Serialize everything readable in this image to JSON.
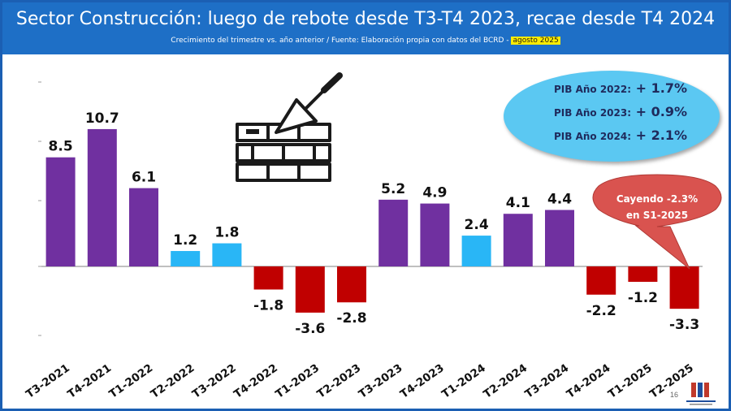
{
  "header": {
    "title": "Sector Construcción: luego de rebote desde T3-T4 2023, recae desde T4 2024",
    "subtitle": "Crecimiento del trimestre vs. año anterior / Fuente: Elaboración propia con datos del BCRD - ",
    "subtitle_highlight": "agosto 2025"
  },
  "pib_box": {
    "items": [
      {
        "label": "PIB Año 2022:",
        "value": "+ 1.7%"
      },
      {
        "label": "PIB Año 2023:",
        "value": "+ 0.9%"
      },
      {
        "label": "PIB Año 2024:",
        "value": "+ 2.1%"
      }
    ]
  },
  "callout": {
    "line1": "Cayendo -2.3%",
    "line2": "en S1-2025"
  },
  "page_number": "16",
  "colors": {
    "header": "#1e6fc6",
    "purple": "#7030a0",
    "light_blue": "#29b6f6",
    "red": "#c00000",
    "ellipse": "#5bc8f2",
    "callout": "#d9534f"
  },
  "chart_data": {
    "type": "bar",
    "title": "Sector Construcción: luego de rebote desde T3-T4 2023, recae desde T4 2024",
    "xlabel": "",
    "ylabel": "",
    "categories": [
      "T3-2021",
      "T4-2021",
      "T1-2022",
      "T2-2022",
      "T3-2022",
      "T4-2022",
      "T1-2023",
      "T2-2023",
      "T3-2023",
      "T4-2023",
      "T1-2024",
      "T2-2024",
      "T3-2024",
      "T4-2024",
      "T1-2025",
      "T2-2025"
    ],
    "values": [
      8.5,
      10.7,
      6.1,
      1.2,
      1.8,
      -1.8,
      -3.6,
      -2.8,
      5.2,
      4.9,
      2.4,
      4.1,
      4.4,
      -2.2,
      -1.2,
      -3.3
    ],
    "labels": [
      "8.5",
      "10.7",
      "6.1",
      "1.2",
      "1.8",
      "-1.8",
      "-3.6",
      "-2.8",
      "5.2",
      "4.9",
      "2.4",
      "4.1",
      "4.4",
      "-2.2",
      "-1.2",
      "-3.3"
    ],
    "color_groups": [
      "purple",
      "purple",
      "purple",
      "light_blue",
      "light_blue",
      "red",
      "red",
      "red",
      "purple",
      "purple",
      "light_blue",
      "purple",
      "purple",
      "red",
      "red",
      "red"
    ],
    "ylim": [
      -5,
      14
    ],
    "grid": false,
    "legend": "none"
  }
}
